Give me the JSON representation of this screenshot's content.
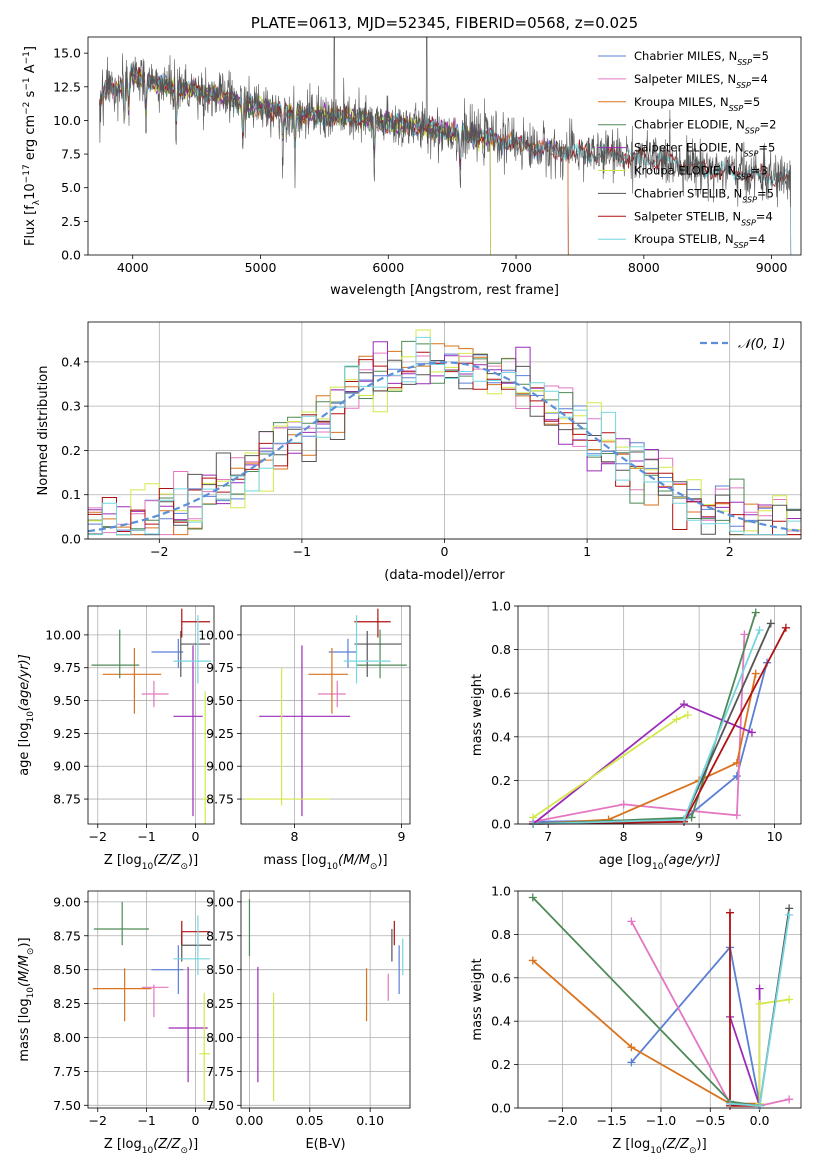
{
  "colors": {
    "chabrier_miles": "#5b7fd6",
    "salpeter_miles": "#e377c2",
    "kroupa_miles": "#d9731f",
    "chabrier_elodie": "#4e8a57",
    "salpeter_elodie": "#9b2bb8",
    "kroupa_elodie": "#d4e84a",
    "chabrier_stelib": "#555555",
    "salpeter_stelib": "#b01111",
    "kroupa_stelib": "#76d6e0",
    "normal_curve": "#5b8fd9",
    "grid": "#b0b0b0"
  },
  "chart_data": [
    {
      "id": "spectrum",
      "type": "line",
      "title": "PLATE=0613, MJD=52345, FIBERID=0568, z=0.025",
      "xlabel": "wavelength [Angstrom, rest frame]",
      "ylabel_parts": [
        "Flux [f",
        "λ",
        "10",
        "−17",
        " erg cm",
        "−2",
        " s",
        "−1",
        " A",
        "−1",
        "]"
      ],
      "xlim": [
        3650,
        9230
      ],
      "ylim": [
        0,
        16.2
      ],
      "xticks": [
        "4000",
        "5000",
        "6000",
        "7000",
        "8000",
        "9000"
      ],
      "yticks": [
        "0.0",
        "2.5",
        "5.0",
        "7.5",
        "10.0",
        "12.5",
        "15.0"
      ],
      "grid": false,
      "legend": "top-right",
      "legend_entries": [
        {
          "label": "Chabrier MILES",
          "n": "5",
          "color_key": "chabrier_miles"
        },
        {
          "label": "Salpeter MILES",
          "n": "4",
          "color_key": "salpeter_miles"
        },
        {
          "label": "Kroupa MILES",
          "n": "5",
          "color_key": "kroupa_miles"
        },
        {
          "label": "Chabrier ELODIE",
          "n": "2",
          "color_key": "chabrier_elodie"
        },
        {
          "label": "Salpeter ELODIE",
          "n": "5",
          "color_key": "salpeter_elodie"
        },
        {
          "label": "Kroupa ELODIE",
          "n": "3",
          "color_key": "kroupa_elodie"
        },
        {
          "label": "Chabrier STELIB",
          "n": "5",
          "color_key": "chabrier_stelib"
        },
        {
          "label": "Salpeter STELIB",
          "n": "4",
          "color_key": "salpeter_stelib"
        },
        {
          "label": "Kroupa STELIB",
          "n": "4",
          "color_key": "kroupa_stelib"
        }
      ],
      "legend_prefix": "N",
      "legend_subscript": "SSP",
      "continuum_points": [
        [
          3740,
          11.0
        ],
        [
          3800,
          12.5
        ],
        [
          3900,
          12.6
        ],
        [
          4000,
          13.5
        ],
        [
          4100,
          13.0
        ],
        [
          4300,
          12.5
        ],
        [
          4500,
          12.2
        ],
        [
          4700,
          11.8
        ],
        [
          4900,
          11.2
        ],
        [
          5100,
          10.8
        ],
        [
          5300,
          10.5
        ],
        [
          5500,
          10.3
        ],
        [
          5800,
          10.1
        ],
        [
          6000,
          9.8
        ],
        [
          6200,
          9.6
        ],
        [
          6500,
          9.1
        ],
        [
          6800,
          8.7
        ],
        [
          7000,
          8.3
        ],
        [
          7200,
          7.9
        ],
        [
          7500,
          7.6
        ],
        [
          7800,
          7.4
        ],
        [
          8000,
          7.2
        ],
        [
          8300,
          6.8
        ],
        [
          8600,
          6.3
        ],
        [
          8900,
          5.9
        ],
        [
          9150,
          5.6
        ]
      ],
      "model_coverage": {
        "miles": [
          3740,
          7410
        ],
        "elodie": [
          3900,
          6800
        ],
        "stelib": [
          3740,
          9150
        ]
      }
    },
    {
      "id": "residuals",
      "type": "bar",
      "xlabel": "(data-model)/error",
      "ylabel": "Normed distribution",
      "xlim": [
        -2.5,
        2.5
      ],
      "ylim": [
        0,
        0.49
      ],
      "xticks": [
        "−2",
        "−1",
        "0",
        "1",
        "2"
      ],
      "yticks": [
        "0.0",
        "0.1",
        "0.2",
        "0.3",
        "0.4"
      ],
      "grid": true,
      "legend": "top-right",
      "curve_label": "𝒩(0, 1)",
      "bins": 50
    },
    {
      "id": "age-metallicity",
      "type": "scatter",
      "xlabel_parts": [
        "Z [log",
        "10",
        "(Z/Z",
        "⊙",
        ")]"
      ],
      "ylabel_parts": [
        "age  [log",
        "10",
        "(age/yr)]"
      ],
      "xlim": [
        -2.2,
        0.38
      ],
      "ylim": [
        8.56,
        10.22
      ],
      "xticks": [
        "−2",
        "−1",
        "0"
      ],
      "yticks": [
        "8.75",
        "9.00",
        "9.25",
        "9.50",
        "9.75",
        "10.00"
      ],
      "grid": true,
      "points": [
        {
          "color_key": "chabrier_miles",
          "x": -0.35,
          "y": 9.87,
          "xerr": [
            0.55,
            0.1
          ],
          "yerr": [
            0.12,
            0.1
          ]
        },
        {
          "color_key": "salpeter_miles",
          "x": -0.85,
          "y": 9.55,
          "xerr": [
            0.25,
            0.3
          ],
          "yerr": [
            0.1,
            0.1
          ]
        },
        {
          "color_key": "kroupa_miles",
          "x": -1.25,
          "y": 9.7,
          "xerr": [
            0.65,
            0.55
          ],
          "yerr": [
            0.3,
            0.2
          ]
        },
        {
          "color_key": "chabrier_elodie",
          "x": -1.55,
          "y": 9.77,
          "xerr": [
            0.58,
            0.4
          ],
          "yerr": [
            0.1,
            0.27
          ]
        },
        {
          "color_key": "salpeter_elodie",
          "x": -0.05,
          "y": 9.38,
          "xerr": [
            0.4,
            0.2
          ],
          "yerr": [
            0.76,
            0.54
          ]
        },
        {
          "color_key": "kroupa_elodie",
          "x": 0.2,
          "y": 8.75,
          "xerr": [
            0.05,
            0.1
          ],
          "yerr": [
            0.8,
            0.82
          ]
        },
        {
          "color_key": "chabrier_stelib",
          "x": -0.3,
          "y": 9.93,
          "xerr": [
            0.0,
            0.6
          ],
          "yerr": [
            0.25,
            0.1
          ]
        },
        {
          "color_key": "salpeter_stelib",
          "x": -0.28,
          "y": 10.1,
          "xerr": [
            0.0,
            0.58
          ],
          "yerr": [
            0.12,
            0.1
          ]
        },
        {
          "color_key": "kroupa_stelib",
          "x": 0.05,
          "y": 9.8,
          "xerr": [
            0.5,
            0.27
          ],
          "yerr": [
            0.17,
            0.35
          ]
        }
      ]
    },
    {
      "id": "age-mass",
      "type": "scatter",
      "xlabel_parts": [
        "mass [log",
        "10",
        "(M/M",
        "⊙",
        ")]"
      ],
      "ylabel_parts": [],
      "xlim": [
        7.5,
        9.08
      ],
      "ylim": [
        8.56,
        10.22
      ],
      "xticks": [
        "8",
        "9"
      ],
      "yticks": [
        "8.75",
        "9.00",
        "9.25",
        "9.50",
        "9.75",
        "10.00"
      ],
      "grid": true,
      "points": [
        {
          "color_key": "chabrier_miles",
          "x": 8.5,
          "y": 9.87,
          "xerr": [
            0.18,
            0.08
          ],
          "yerr": [
            0.12,
            0.1
          ]
        },
        {
          "color_key": "salpeter_miles",
          "x": 8.4,
          "y": 9.55,
          "xerr": [
            0.18,
            0.08
          ],
          "yerr": [
            0.1,
            0.1
          ]
        },
        {
          "color_key": "kroupa_miles",
          "x": 8.35,
          "y": 9.7,
          "xerr": [
            0.22,
            0.15
          ],
          "yerr": [
            0.3,
            0.2
          ]
        },
        {
          "color_key": "chabrier_elodie",
          "x": 8.8,
          "y": 9.77,
          "xerr": [
            0.22,
            0.25
          ],
          "yerr": [
            0.1,
            0.27
          ]
        },
        {
          "color_key": "salpeter_elodie",
          "x": 8.07,
          "y": 9.38,
          "xerr": [
            0.4,
            0.45
          ],
          "yerr": [
            0.76,
            0.54
          ]
        },
        {
          "color_key": "kroupa_elodie",
          "x": 7.88,
          "y": 8.75,
          "xerr": [
            0.35,
            0.45
          ],
          "yerr": [
            0.05,
            1.0
          ]
        },
        {
          "color_key": "chabrier_stelib",
          "x": 8.68,
          "y": 9.93,
          "xerr": [
            0.12,
            0.32
          ],
          "yerr": [
            0.25,
            0.1
          ]
        },
        {
          "color_key": "salpeter_stelib",
          "x": 8.78,
          "y": 10.1,
          "xerr": [
            0.22,
            0.12
          ],
          "yerr": [
            0.12,
            0.1
          ]
        },
        {
          "color_key": "kroupa_stelib",
          "x": 8.58,
          "y": 9.8,
          "xerr": [
            0.12,
            0.32
          ],
          "yerr": [
            0.17,
            0.35
          ]
        }
      ]
    },
    {
      "id": "weight-age",
      "type": "line",
      "xlabel_parts": [
        "age  [log",
        "10",
        "(age/yr)]"
      ],
      "ylabel": "mass weight",
      "xlim": [
        6.6,
        10.35
      ],
      "ylim": [
        0,
        1.0
      ],
      "xticks": [
        "7",
        "8",
        "9",
        "10"
      ],
      "yticks": [
        "0.0",
        "0.2",
        "0.4",
        "0.6",
        "0.8",
        "1.0"
      ],
      "grid": true,
      "series": [
        {
          "color_key": "chabrier_miles",
          "x": [
            6.8,
            8.8,
            9.5,
            9.9
          ],
          "y": [
            0.01,
            0.02,
            0.22,
            0.74
          ]
        },
        {
          "color_key": "salpeter_miles",
          "x": [
            6.8,
            8.0,
            9.5,
            9.6
          ],
          "y": [
            0.01,
            0.09,
            0.04,
            0.87
          ]
        },
        {
          "color_key": "kroupa_miles",
          "x": [
            6.8,
            7.8,
            9.0,
            9.5,
            9.75
          ],
          "y": [
            0.0,
            0.02,
            0.2,
            0.28,
            0.69
          ]
        },
        {
          "color_key": "chabrier_elodie",
          "x": [
            6.8,
            8.9,
            9.75
          ],
          "y": [
            0.0,
            0.03,
            0.97
          ]
        },
        {
          "color_key": "salpeter_elodie",
          "x": [
            6.8,
            8.8,
            9.7
          ],
          "y": [
            0.0,
            0.55,
            0.42
          ]
        },
        {
          "color_key": "kroupa_elodie",
          "x": [
            6.8,
            8.7,
            8.85
          ],
          "y": [
            0.03,
            0.48,
            0.5
          ]
        },
        {
          "color_key": "chabrier_stelib",
          "x": [
            6.8,
            8.8,
            9.95
          ],
          "y": [
            0.0,
            0.02,
            0.92
          ]
        },
        {
          "color_key": "salpeter_stelib",
          "x": [
            6.8,
            8.8,
            10.15
          ],
          "y": [
            0.0,
            0.01,
            0.9
          ]
        },
        {
          "color_key": "kroupa_stelib",
          "x": [
            6.8,
            8.8,
            9.8
          ],
          "y": [
            0.0,
            0.02,
            0.89
          ]
        }
      ]
    },
    {
      "id": "mass-metallicity",
      "type": "scatter",
      "xlabel_parts": [
        "Z [log",
        "10",
        "(Z/Z",
        "⊙",
        ")]"
      ],
      "ylabel_parts": [
        "mass [log",
        "10",
        "(M/M",
        "⊙",
        ")]"
      ],
      "xlim": [
        -2.2,
        0.38
      ],
      "ylim": [
        7.48,
        9.08
      ],
      "xticks": [
        "−2",
        "−1",
        "0"
      ],
      "yticks": [
        "7.50",
        "7.75",
        "8.00",
        "8.25",
        "8.50",
        "8.75",
        "9.00"
      ],
      "grid": true,
      "points": [
        {
          "color_key": "chabrier_miles",
          "x": -0.35,
          "y": 8.5,
          "xerr": [
            0.55,
            0.1
          ],
          "yerr": [
            0.18,
            0.18
          ]
        },
        {
          "color_key": "salpeter_miles",
          "x": -0.85,
          "y": 8.37,
          "xerr": [
            0.25,
            0.3
          ],
          "yerr": [
            0.22,
            0.02
          ]
        },
        {
          "color_key": "kroupa_miles",
          "x": -1.45,
          "y": 8.36,
          "xerr": [
            0.65,
            0.55
          ],
          "yerr": [
            0.24,
            0.15
          ]
        },
        {
          "color_key": "chabrier_elodie",
          "x": -1.5,
          "y": 8.8,
          "xerr": [
            0.58,
            0.55
          ],
          "yerr": [
            0.12,
            0.2
          ]
        },
        {
          "color_key": "salpeter_elodie",
          "x": -0.15,
          "y": 8.07,
          "xerr": [
            0.4,
            0.4
          ],
          "yerr": [
            0.4,
            0.45
          ]
        },
        {
          "color_key": "kroupa_elodie",
          "x": 0.18,
          "y": 7.88,
          "xerr": [
            0.1,
            0.12
          ],
          "yerr": [
            0.35,
            0.45
          ]
        },
        {
          "color_key": "chabrier_stelib",
          "x": -0.28,
          "y": 8.68,
          "xerr": [
            0.0,
            0.6
          ],
          "yerr": [
            0.12,
            0.1
          ]
        },
        {
          "color_key": "salpeter_stelib",
          "x": -0.28,
          "y": 8.78,
          "xerr": [
            0.0,
            0.58
          ],
          "yerr": [
            0.1,
            0.08
          ]
        },
        {
          "color_key": "kroupa_stelib",
          "x": 0.05,
          "y": 8.58,
          "xerr": [
            0.5,
            0.25
          ],
          "yerr": [
            0.12,
            0.32
          ]
        }
      ]
    },
    {
      "id": "mass-extinction",
      "type": "scatter",
      "xlabel": "E(B-V)",
      "ylabel_parts": [],
      "xlim": [
        -0.007,
        0.133
      ],
      "ylim": [
        7.48,
        9.08
      ],
      "xticks": [
        "0.00",
        "0.05",
        "0.10"
      ],
      "yticks": [
        "7.50",
        "7.75",
        "8.00",
        "8.25",
        "8.50",
        "8.75",
        "9.00"
      ],
      "grid": true,
      "points": [
        {
          "color_key": "chabrier_miles",
          "x": 0.124,
          "y": 8.5,
          "yerr": [
            0.18,
            0.18
          ]
        },
        {
          "color_key": "salpeter_miles",
          "x": 0.115,
          "y": 8.37,
          "yerr": [
            0.1,
            0.1
          ]
        },
        {
          "color_key": "kroupa_miles",
          "x": 0.097,
          "y": 8.36,
          "yerr": [
            0.24,
            0.15
          ]
        },
        {
          "color_key": "chabrier_elodie",
          "x": 0.0,
          "y": 8.8,
          "yerr": [
            0.2,
            0.22
          ]
        },
        {
          "color_key": "salpeter_elodie",
          "x": 0.007,
          "y": 8.07,
          "yerr": [
            0.4,
            0.45
          ]
        },
        {
          "color_key": "kroupa_elodie",
          "x": 0.02,
          "y": 7.88,
          "yerr": [
            0.35,
            0.45
          ]
        },
        {
          "color_key": "chabrier_stelib",
          "x": 0.118,
          "y": 8.68,
          "yerr": [
            0.12,
            0.12
          ]
        },
        {
          "color_key": "salpeter_stelib",
          "x": 0.12,
          "y": 8.78,
          "yerr": [
            0.1,
            0.08
          ]
        },
        {
          "color_key": "kroupa_stelib",
          "x": 0.127,
          "y": 8.58,
          "yerr": [
            0.12,
            0.15
          ]
        }
      ]
    },
    {
      "id": "weight-metallicity",
      "type": "line",
      "xlabel_parts": [
        "Z [log",
        "10",
        "(Z/Z",
        "⊙",
        ")]"
      ],
      "ylabel": "mass weight",
      "xlim": [
        -2.45,
        0.42
      ],
      "ylim": [
        0,
        1.0
      ],
      "xticks": [
        "−2.0",
        "−1.5",
        "−1.0",
        "−0.5",
        "0.0"
      ],
      "yticks": [
        "0.0",
        "0.2",
        "0.4",
        "0.6",
        "0.8",
        "1.0"
      ],
      "grid": true,
      "series": [
        {
          "color_key": "chabrier_miles",
          "x": [
            -1.3,
            -0.3,
            0.0
          ],
          "y": [
            0.21,
            0.74,
            0.02
          ]
        },
        {
          "color_key": "salpeter_miles",
          "x": [
            -1.3,
            -0.3,
            0.0,
            0.3
          ],
          "y": [
            0.86,
            0.02,
            0.01,
            0.04
          ]
        },
        {
          "color_key": "kroupa_miles",
          "x": [
            -2.3,
            -1.3,
            -0.3,
            0.0
          ],
          "y": [
            0.68,
            0.28,
            0.02,
            0.02
          ]
        },
        {
          "color_key": "chabrier_elodie",
          "x": [
            -2.3,
            -0.3,
            0.0
          ],
          "y": [
            0.97,
            0.03,
            0.01
          ]
        },
        {
          "color_key": "salpeter_elodie",
          "x": [
            -0.3,
            0.0,
            0.0
          ],
          "y": [
            0.42,
            0.01,
            0.55
          ]
        },
        {
          "color_key": "kroupa_elodie",
          "x": [
            0.0,
            0.0,
            0.3
          ],
          "y": [
            0.02,
            0.48,
            0.5
          ]
        },
        {
          "color_key": "chabrier_stelib",
          "x": [
            -0.3,
            0.0,
            0.3
          ],
          "y": [
            0.02,
            0.01,
            0.92
          ]
        },
        {
          "color_key": "salpeter_stelib",
          "x": [
            -0.3,
            -0.3,
            0.0
          ],
          "y": [
            0.9,
            0.01,
            0.01
          ]
        },
        {
          "color_key": "kroupa_stelib",
          "x": [
            -0.3,
            0.0,
            0.3
          ],
          "y": [
            0.02,
            0.01,
            0.89
          ]
        }
      ]
    }
  ]
}
